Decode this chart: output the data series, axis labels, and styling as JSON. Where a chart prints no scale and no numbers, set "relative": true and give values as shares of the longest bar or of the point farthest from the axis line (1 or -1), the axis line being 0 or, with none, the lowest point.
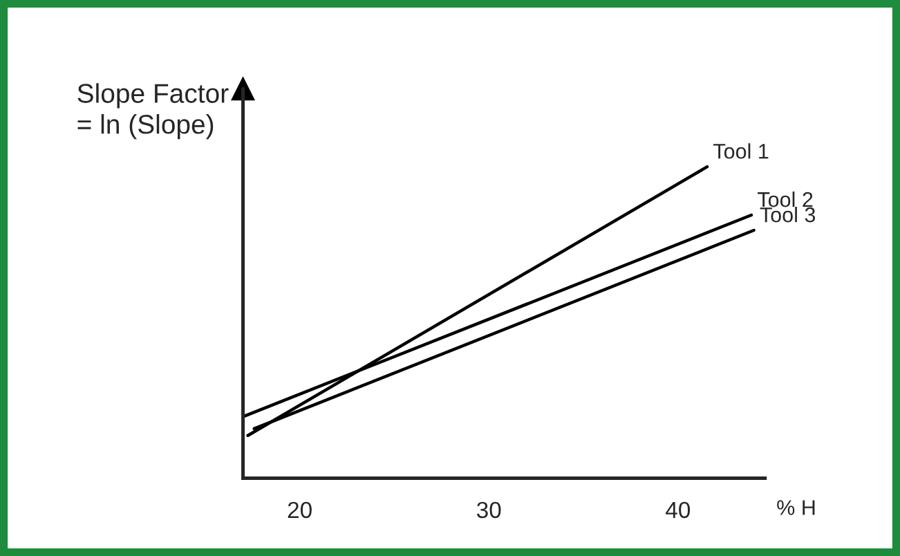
{
  "chart_data": {
    "type": "line",
    "relative": true,
    "ylabel": "Slope Factor\n= ln (Slope)",
    "xlabel": "% H",
    "xlim": [
      17,
      44.6
    ],
    "xticks": [
      20,
      30,
      40
    ],
    "grid": false,
    "legend": false,
    "marker": "none",
    "line_style": "solid",
    "series": [
      {
        "name": "Tool 1",
        "color": "#000000",
        "x": [
          17.26,
          41.54
        ],
        "values": [
          0.137,
          1
        ]
      },
      {
        "name": "Tool 2",
        "color": "#000000",
        "x": [
          17.06,
          43.88
        ],
        "values": [
          0.199,
          0.845
        ]
      },
      {
        "name": "Tool 3",
        "color": "#000000",
        "x": [
          17.59,
          44.01
        ],
        "values": [
          0.159,
          0.796
        ]
      }
    ]
  }
}
